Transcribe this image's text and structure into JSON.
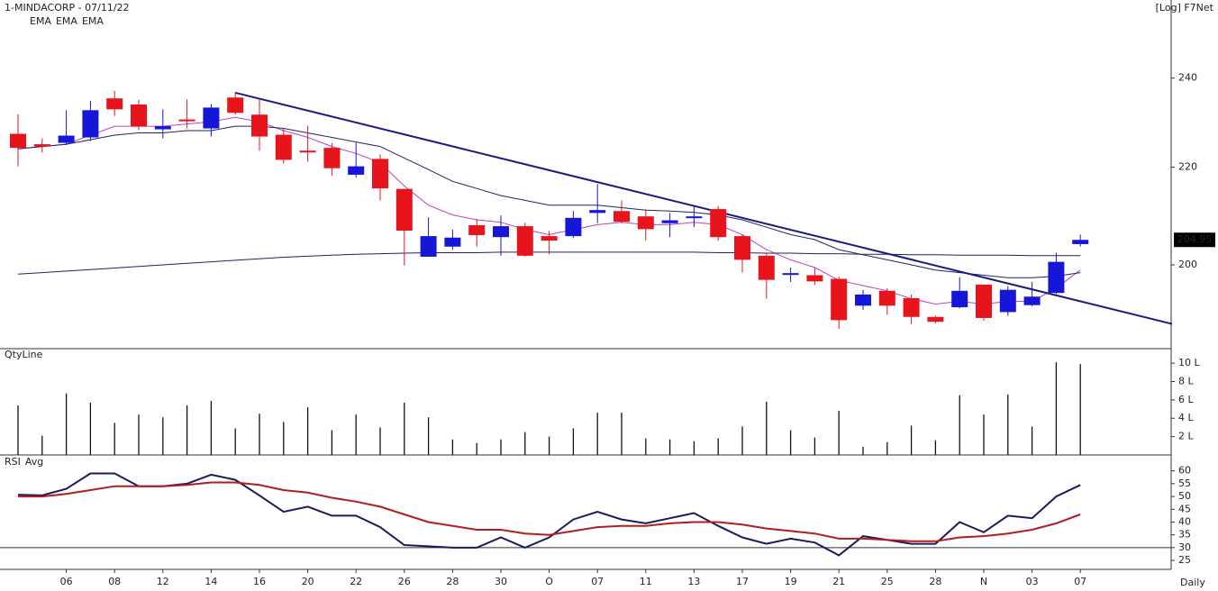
{
  "chart_data": [
    {
      "type": "candlestick",
      "title": "1-MINDACORP - 07/11/22",
      "header_right": "[Log] F7Net",
      "period": "Daily",
      "log_scale": true,
      "categories": [
        null,
        null,
        "06",
        null,
        "08",
        null,
        "12",
        null,
        "14",
        null,
        "16",
        null,
        "20",
        null,
        "22",
        null,
        "26",
        null,
        "28",
        null,
        "30",
        null,
        "O",
        null,
        "07",
        null,
        "11",
        null,
        "13",
        null,
        "17",
        null,
        "19",
        null,
        "21",
        null,
        "25",
        null,
        "28",
        null,
        "N",
        null,
        "03",
        null,
        "07"
      ],
      "open": [
        227.3,
        225.0,
        225.3,
        226.5,
        235.3,
        233.9,
        228.3,
        230.5,
        228.5,
        235.5,
        231.6,
        227.1,
        223.6,
        224.2,
        218.4,
        221.8,
        215.4,
        201.6,
        203.6,
        207.9,
        205.5,
        207.7,
        205.7,
        205.7,
        210.4,
        210.8,
        209.7,
        208.3,
        209.4,
        211.2,
        205.7,
        201.8,
        198.1,
        198.0,
        197.3,
        192.2,
        195.0,
        193.6,
        190.1,
        191.9,
        196.2,
        191.0,
        192.3,
        194.6,
        204.1
      ],
      "high": [
        231.7,
        226.3,
        232.6,
        234.7,
        237.0,
        235.0,
        232.8,
        235.1,
        234.0,
        236.8,
        235.0,
        228.5,
        229.1,
        225.3,
        225.3,
        222.8,
        215.4,
        209.5,
        207.0,
        209.2,
        209.9,
        208.4,
        206.7,
        210.8,
        216.4,
        213.0,
        211.2,
        210.4,
        212.0,
        211.8,
        206.1,
        202.3,
        199.5,
        199.5,
        197.7,
        195.2,
        195.5,
        194.3,
        190.3,
        197.6,
        196.2,
        195.9,
        196.7,
        202.4,
        206.0
      ],
      "low": [
        220.2,
        223.2,
        224.8,
        225.7,
        231.3,
        228.1,
        226.3,
        228.5,
        226.7,
        231.6,
        223.6,
        220.8,
        221.2,
        218.2,
        217.8,
        213.0,
        199.9,
        201.6,
        203.0,
        203.6,
        201.8,
        201.6,
        202.1,
        205.3,
        208.3,
        208.3,
        204.8,
        205.5,
        207.5,
        204.8,
        198.5,
        193.5,
        196.7,
        196.1,
        187.9,
        191.4,
        190.5,
        188.8,
        188.9,
        191.7,
        189.4,
        190.3,
        192.1,
        194.4,
        203.6
      ],
      "close": [
        224.2,
        224.5,
        226.9,
        232.6,
        232.8,
        228.9,
        229.0,
        230.1,
        233.2,
        232.0,
        226.7,
        221.6,
        223.2,
        219.8,
        220.2,
        215.5,
        206.8,
        205.7,
        205.4,
        205.9,
        207.7,
        201.8,
        204.8,
        209.4,
        211.0,
        208.6,
        207.1,
        208.9,
        209.7,
        205.5,
        201.0,
        197.1,
        198.4,
        196.8,
        189.5,
        194.3,
        192.2,
        190.1,
        189.2,
        195.0,
        189.9,
        195.2,
        193.9,
        200.6,
        204.95
      ],
      "up_color": "#1616d8",
      "down_color": "#e8141b",
      "series": [
        {
          "name": "EMA",
          "color": "#c040c0",
          "values": [
            224,
            224.5,
            225,
            227,
            229,
            229,
            229,
            229.5,
            230,
            231,
            230,
            228,
            226.5,
            224.5,
            223,
            221,
            216,
            212,
            210,
            209,
            208.5,
            207,
            206,
            207,
            208,
            208.5,
            208,
            208,
            208.5,
            208,
            206,
            203,
            201,
            199.5,
            197,
            196,
            195,
            193.5,
            192.5,
            193,
            192.5,
            193,
            193,
            195.5,
            199
          ]
        },
        {
          "name": "EMA",
          "color": "#222266",
          "values": [
            224,
            224.5,
            225,
            226,
            227,
            227.5,
            227.5,
            228,
            228,
            229,
            229,
            228.5,
            227.5,
            226.5,
            225.5,
            224.5,
            222,
            219.5,
            217,
            215.5,
            214,
            213,
            212,
            212,
            212,
            211.5,
            211,
            210.8,
            210.5,
            210,
            209,
            207.5,
            206,
            205,
            203,
            202,
            201,
            200,
            199,
            198.5,
            198,
            197.5,
            197.5,
            197.8,
            198.5
          ]
        },
        {
          "name": "EMA",
          "color": "#222266",
          "values": [
            198.2,
            198.5,
            198.8,
            199.1,
            199.4,
            199.7,
            200.0,
            200.3,
            200.6,
            200.9,
            201.2,
            201.5,
            201.7,
            201.9,
            202.1,
            202.2,
            202.3,
            202.4,
            202.4,
            202.4,
            202.5,
            202.5,
            202.5,
            202.5,
            202.5,
            202.5,
            202.5,
            202.5,
            202.5,
            202.4,
            202.4,
            202.3,
            202.3,
            202.2,
            202.2,
            202.1,
            202.1,
            202.0,
            202.0,
            201.9,
            201.9,
            201.9,
            201.8,
            201.8,
            201.8
          ]
        }
      ],
      "trendline": {
        "color": "#1a1a80",
        "start": [
          9,
          236.6
        ],
        "end": [
          47.8,
          188.8
        ]
      },
      "ylim": [
        184.3,
        254.5
      ],
      "yticks": [
        200,
        220,
        240
      ]
    },
    {
      "type": "bar",
      "title": "QtyLine",
      "color": "#111111",
      "values": [
        5.4,
        2.1,
        6.7,
        5.7,
        3.5,
        4.4,
        4.1,
        5.4,
        5.9,
        2.9,
        4.5,
        3.6,
        5.2,
        2.7,
        4.4,
        3.0,
        5.7,
        4.1,
        1.7,
        1.3,
        1.7,
        2.5,
        2.0,
        2.9,
        4.6,
        4.6,
        1.8,
        1.7,
        1.5,
        1.8,
        3.1,
        5.8,
        2.7,
        1.9,
        4.8,
        0.9,
        1.4,
        3.2,
        1.6,
        6.5,
        4.4,
        6.6,
        3.1,
        10.1,
        9.9
      ],
      "ylim": [
        0,
        10.6
      ],
      "yticks": [
        {
          "value": 2,
          "label": "2 L"
        },
        {
          "value": 4,
          "label": "4 L"
        },
        {
          "value": 6,
          "label": "6 L"
        },
        {
          "value": 8,
          "label": "8 L"
        },
        {
          "value": 10,
          "label": "10 L"
        }
      ]
    },
    {
      "type": "line",
      "series": [
        {
          "name": "RSI",
          "color": "#1a1a5e",
          "values": [
            50.7,
            50.4,
            53,
            59,
            59,
            54,
            54,
            55,
            58.5,
            56.5,
            50.4,
            44,
            46,
            42.5,
            42.5,
            38,
            31,
            30.5,
            30,
            30,
            34,
            30,
            34,
            41,
            44,
            41,
            39.5,
            41.5,
            43.5,
            38.5,
            34,
            31.5,
            33.5,
            32,
            27,
            34.5,
            33,
            31.5,
            31.5,
            40,
            36,
            42.5,
            41.5,
            50,
            54.5
          ]
        },
        {
          "name": "Avg",
          "color": "#b01e1e",
          "values": [
            50,
            50,
            51,
            52.5,
            54,
            54,
            54,
            54.5,
            55.5,
            55.5,
            54.5,
            52.5,
            51.5,
            49.5,
            48,
            46,
            43,
            40,
            38.5,
            37,
            37,
            35.5,
            35,
            36.5,
            38,
            38.5,
            38.5,
            39.5,
            40,
            40,
            39,
            37.5,
            36.5,
            35.5,
            33.5,
            33.5,
            33,
            32.5,
            32.5,
            34,
            34.5,
            35.5,
            37,
            39.5,
            43
          ]
        }
      ],
      "hlines": [
        30
      ],
      "ylim": [
        21.5,
        62
      ],
      "yticks": [
        25,
        30,
        35,
        40,
        45,
        50,
        55,
        60
      ]
    }
  ]
}
